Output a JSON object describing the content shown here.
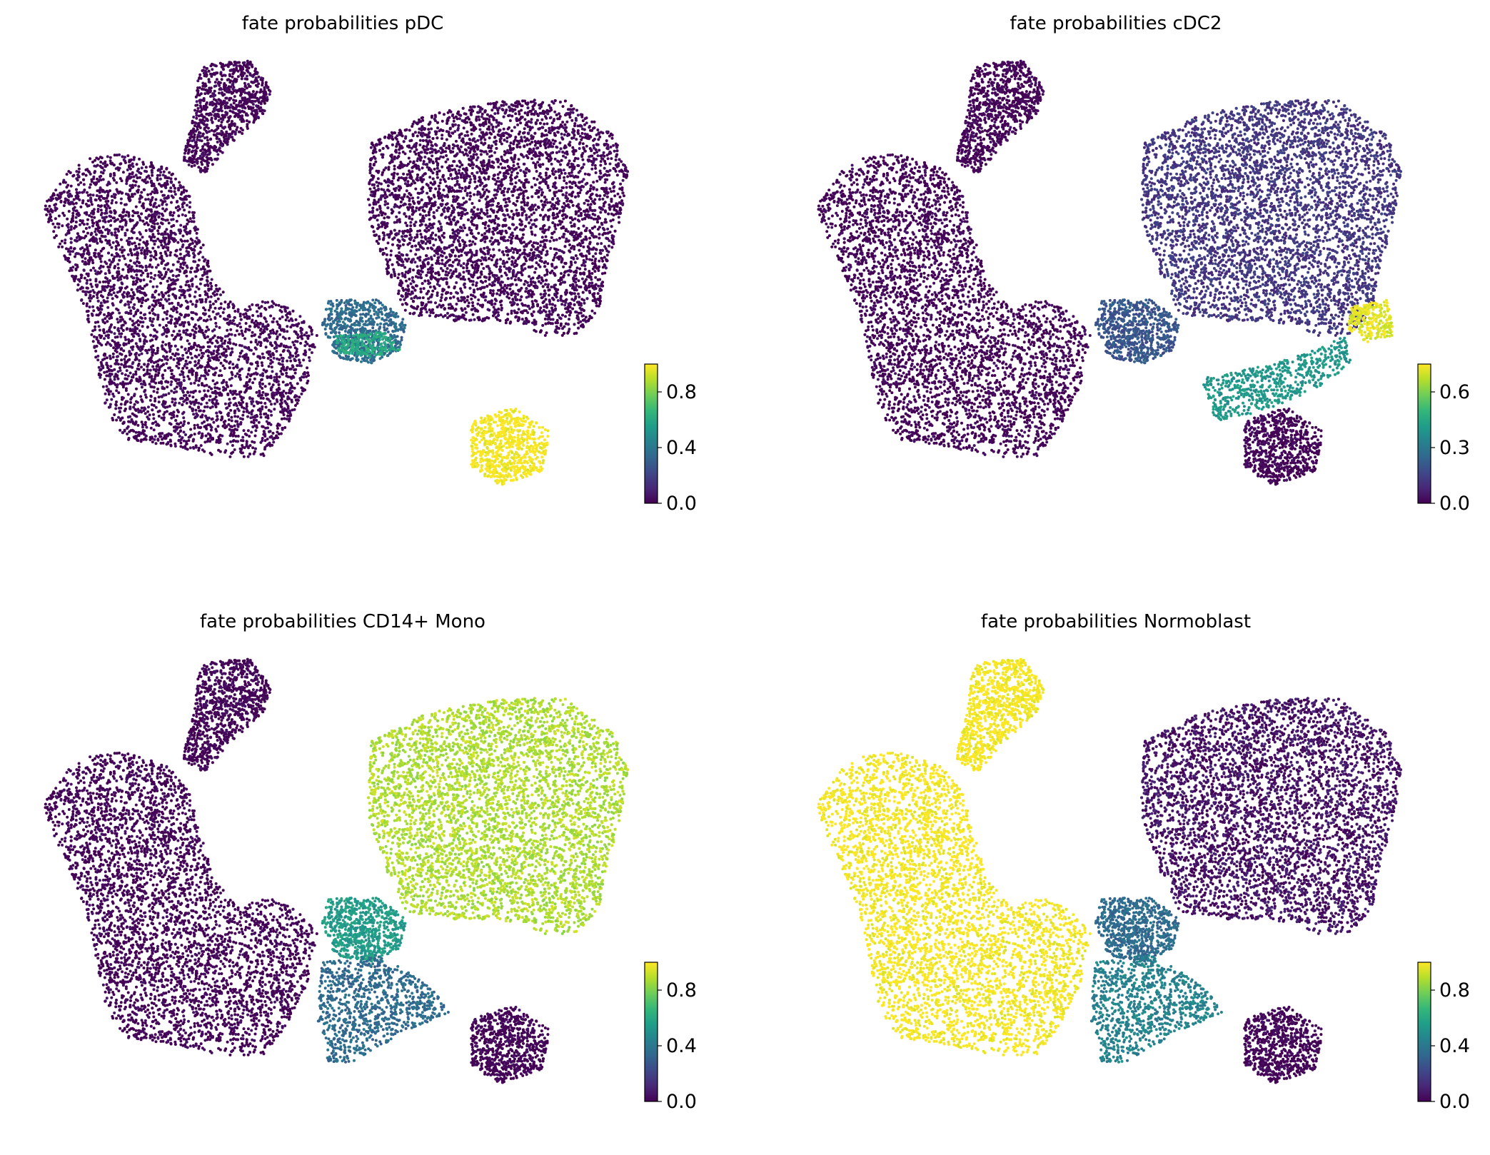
{
  "colormap": {
    "name": "viridis",
    "stops": [
      "#440154",
      "#482878",
      "#3e4989",
      "#31688e",
      "#26828e",
      "#1f9e89",
      "#35b779",
      "#6ece58",
      "#b5de2b",
      "#fde725"
    ]
  },
  "chart_data": [
    {
      "type": "scatter",
      "title": "fate probabilities pDC",
      "xlabel": "",
      "ylabel": "",
      "colorbar": {
        "ticks": [
          "0.0",
          "0.4",
          "0.8"
        ],
        "range": [
          0,
          1
        ]
      },
      "regions": [
        {
          "region": "upper-left arm",
          "value": 0.0
        },
        {
          "region": "left lobe",
          "value": 0.0
        },
        {
          "region": "right lobe",
          "value": 0.0
        },
        {
          "region": "central bridge",
          "value": 0.35
        },
        {
          "region": "green band (center)",
          "value": 0.6
        },
        {
          "region": "lower-right island",
          "value": 1.0
        }
      ]
    },
    {
      "type": "scatter",
      "title": "fate probabilities cDC2",
      "xlabel": "",
      "ylabel": "",
      "colorbar": {
        "ticks": [
          "0.0",
          "0.3",
          "0.6"
        ],
        "range": [
          0,
          0.75
        ]
      },
      "regions": [
        {
          "region": "upper-left arm",
          "value": 0.0
        },
        {
          "region": "left lobe",
          "value": 0.0
        },
        {
          "region": "right lobe",
          "value": 0.12
        },
        {
          "region": "central bridge",
          "value": 0.2
        },
        {
          "region": "right bridge",
          "value": 0.4
        },
        {
          "region": "right tip cluster",
          "value": 0.72
        },
        {
          "region": "lower-right island",
          "value": 0.0
        }
      ]
    },
    {
      "type": "scatter",
      "title": "fate probabilities CD14+ Mono",
      "xlabel": "",
      "ylabel": "",
      "colorbar": {
        "ticks": [
          "0.0",
          "0.4",
          "0.8"
        ],
        "range": [
          0,
          1
        ]
      },
      "regions": [
        {
          "region": "upper-left arm",
          "value": 0.0
        },
        {
          "region": "left lobe",
          "value": 0.0
        },
        {
          "region": "right lobe",
          "value": 0.88
        },
        {
          "region": "central bridge",
          "value": 0.55
        },
        {
          "region": "bottom tail",
          "value": 0.35
        },
        {
          "region": "lower-right island",
          "value": 0.0
        }
      ]
    },
    {
      "type": "scatter",
      "title": "fate probabilities Normoblast",
      "xlabel": "",
      "ylabel": "",
      "colorbar": {
        "ticks": [
          "0.0",
          "0.4",
          "0.8"
        ],
        "range": [
          0,
          1
        ]
      },
      "regions": [
        {
          "region": "upper-left arm",
          "value": 1.0
        },
        {
          "region": "left lobe",
          "value": 1.0
        },
        {
          "region": "right lobe",
          "value": 0.05
        },
        {
          "region": "central bridge",
          "value": 0.35
        },
        {
          "region": "bottom tail",
          "value": 0.45
        },
        {
          "region": "lower-right island",
          "value": 0.0
        }
      ]
    }
  ]
}
